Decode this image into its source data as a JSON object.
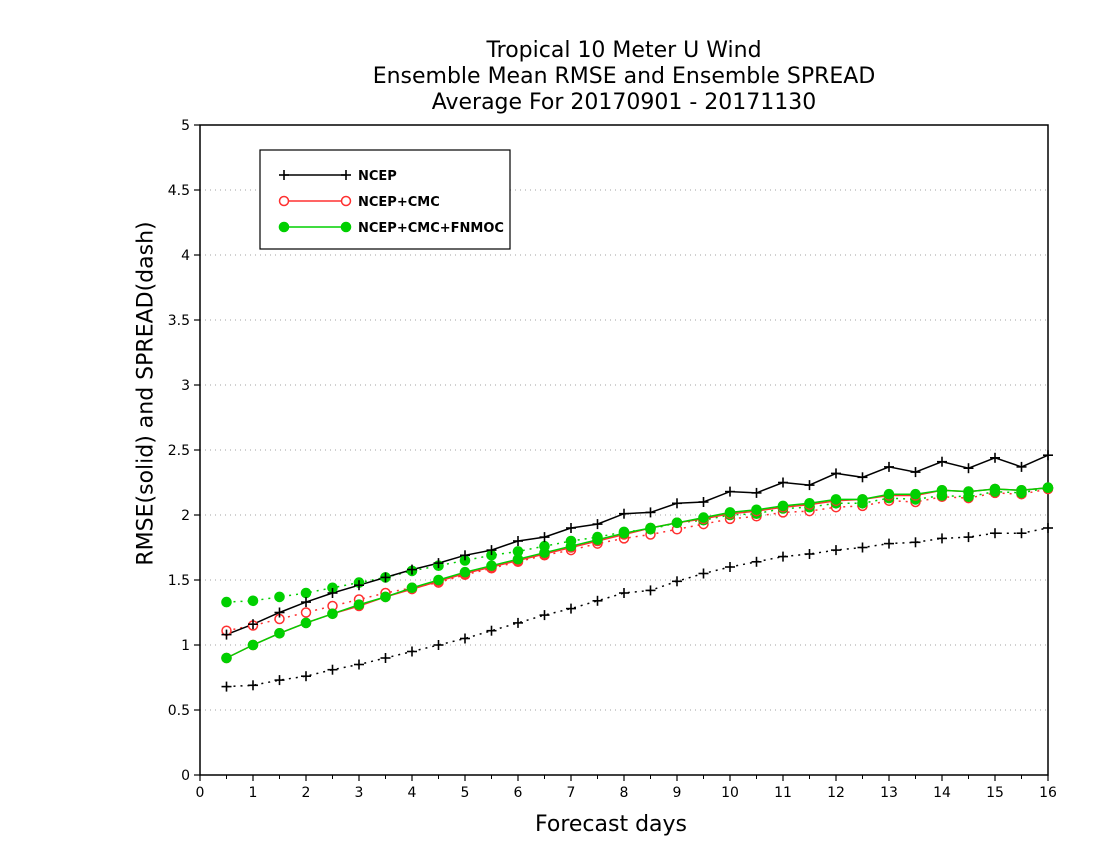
{
  "chart_data": {
    "type": "line",
    "title": [
      "Tropical 10 Meter U Wind",
      "Ensemble Mean RMSE and Ensemble SPREAD",
      "Average For 20170901 - 20171130"
    ],
    "xlabel": "Forecast days",
    "ylabel": "RMSE(solid) and SPREAD(dash)",
    "xlim": [
      0,
      16
    ],
    "ylim": [
      0,
      5
    ],
    "x_ticks": [
      "0",
      "1",
      "2",
      "3",
      "4",
      "5",
      "6",
      "7",
      "8",
      "9",
      "10",
      "11",
      "12",
      "13",
      "14",
      "15",
      "16"
    ],
    "y_ticks": [
      "0",
      "0.5",
      "1",
      "1.5",
      "2",
      "2.5",
      "3",
      "3.5",
      "4",
      "4.5",
      "5"
    ],
    "grid": true,
    "legend_position": "top-left",
    "x": [
      0.5,
      1,
      1.5,
      2,
      2.5,
      3,
      3.5,
      4,
      4.5,
      5,
      5.5,
      6,
      6.5,
      7,
      7.5,
      8,
      8.5,
      9,
      9.5,
      10,
      10.5,
      11,
      11.5,
      12,
      12.5,
      13,
      13.5,
      14,
      14.5,
      15,
      15.5,
      16
    ],
    "series": [
      {
        "name": "NCEP",
        "color": "#000000",
        "marker": "plus",
        "rmse": [
          1.08,
          1.16,
          1.25,
          1.33,
          1.4,
          1.46,
          1.52,
          1.58,
          1.63,
          1.69,
          1.73,
          1.8,
          1.83,
          1.9,
          1.93,
          2.01,
          2.02,
          2.09,
          2.1,
          2.18,
          2.17,
          2.25,
          2.23,
          2.32,
          2.29,
          2.37,
          2.33,
          2.41,
          2.36,
          2.44,
          2.37,
          2.46
        ],
        "spread": [
          0.68,
          0.69,
          0.73,
          0.76,
          0.81,
          0.85,
          0.9,
          0.95,
          1.0,
          1.05,
          1.11,
          1.17,
          1.23,
          1.28,
          1.34,
          1.4,
          1.42,
          1.49,
          1.55,
          1.6,
          1.64,
          1.68,
          1.7,
          1.73,
          1.75,
          1.78,
          1.79,
          1.82,
          1.83,
          1.86,
          1.86,
          1.9
        ]
      },
      {
        "name": "NCEP+CMC",
        "color": "#ff3030",
        "marker": "open-circle",
        "rmse": [
          0.9,
          1.0,
          1.09,
          1.17,
          1.24,
          1.3,
          1.37,
          1.43,
          1.49,
          1.55,
          1.6,
          1.65,
          1.7,
          1.75,
          1.8,
          1.85,
          1.9,
          1.94,
          1.97,
          2.01,
          2.03,
          2.06,
          2.08,
          2.11,
          2.12,
          2.15,
          2.15,
          2.19,
          2.18,
          2.2,
          2.19,
          2.21
        ],
        "spread": [
          1.11,
          1.15,
          1.2,
          1.25,
          1.3,
          1.35,
          1.4,
          1.44,
          1.48,
          1.54,
          1.59,
          1.64,
          1.69,
          1.73,
          1.78,
          1.82,
          1.85,
          1.89,
          1.93,
          1.97,
          1.99,
          2.02,
          2.03,
          2.06,
          2.07,
          2.11,
          2.1,
          2.14,
          2.13,
          2.17,
          2.16,
          2.2
        ]
      },
      {
        "name": "NCEP+CMC+FNMOC",
        "color": "#00d000",
        "marker": "filled-circle",
        "rmse": [
          0.9,
          1.0,
          1.09,
          1.17,
          1.24,
          1.31,
          1.37,
          1.44,
          1.5,
          1.56,
          1.61,
          1.66,
          1.71,
          1.76,
          1.81,
          1.86,
          1.9,
          1.94,
          1.98,
          2.02,
          2.04,
          2.07,
          2.09,
          2.12,
          2.12,
          2.16,
          2.16,
          2.19,
          2.18,
          2.2,
          2.19,
          2.21
        ],
        "spread": [
          1.33,
          1.34,
          1.37,
          1.4,
          1.44,
          1.48,
          1.52,
          1.57,
          1.61,
          1.65,
          1.69,
          1.72,
          1.76,
          1.8,
          1.83,
          1.87,
          1.89,
          1.94,
          1.96,
          2.0,
          2.01,
          2.05,
          2.06,
          2.09,
          2.09,
          2.13,
          2.12,
          2.15,
          2.14,
          2.18,
          2.17,
          2.21
        ]
      }
    ]
  }
}
